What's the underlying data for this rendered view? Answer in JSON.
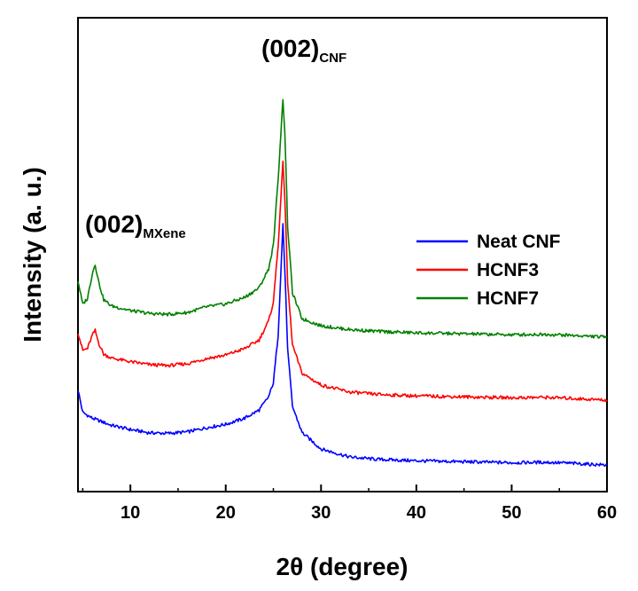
{
  "chart_data": {
    "type": "line",
    "title": "",
    "xlabel": "2θ (degree)",
    "ylabel": "Intensity (a. u.)",
    "xlim": [
      4.5,
      60
    ],
    "ylim": [
      0,
      1
    ],
    "y_ticks_shown": false,
    "x_ticks": [
      10,
      20,
      30,
      40,
      50,
      60
    ],
    "grid": false,
    "legend_position": "right",
    "annotations": [
      {
        "main": "(002)",
        "sub": "CNF",
        "x": 26
      },
      {
        "main": "(002)",
        "sub": "MXene",
        "x": 6.3
      }
    ],
    "series": [
      {
        "name": "Neat CNF",
        "color": "#0000ff",
        "points": [
          [
            4.5,
            0.215
          ],
          [
            5.0,
            0.167
          ],
          [
            6.0,
            0.155
          ],
          [
            8.0,
            0.14
          ],
          [
            10.0,
            0.131
          ],
          [
            12.0,
            0.124
          ],
          [
            14.0,
            0.123
          ],
          [
            16.0,
            0.126
          ],
          [
            18.0,
            0.135
          ],
          [
            20.0,
            0.142
          ],
          [
            22.0,
            0.155
          ],
          [
            23.5,
            0.172
          ],
          [
            24.5,
            0.2
          ],
          [
            25.0,
            0.23
          ],
          [
            25.5,
            0.33
          ],
          [
            25.8,
            0.47
          ],
          [
            26.0,
            0.565
          ],
          [
            26.2,
            0.47
          ],
          [
            26.5,
            0.3
          ],
          [
            27.0,
            0.18
          ],
          [
            28.0,
            0.125
          ],
          [
            30.0,
            0.09
          ],
          [
            33.0,
            0.073
          ],
          [
            36.0,
            0.068
          ],
          [
            40.0,
            0.065
          ],
          [
            45.0,
            0.063
          ],
          [
            50.0,
            0.061
          ],
          [
            53.5,
            0.062
          ],
          [
            56.0,
            0.06
          ],
          [
            60.0,
            0.056
          ]
        ]
      },
      {
        "name": "HCNF3",
        "color": "#ff0000",
        "points": [
          [
            4.5,
            0.336
          ],
          [
            5.0,
            0.298
          ],
          [
            5.5,
            0.302
          ],
          [
            6.0,
            0.33
          ],
          [
            6.3,
            0.34
          ],
          [
            6.7,
            0.312
          ],
          [
            7.2,
            0.29
          ],
          [
            8.0,
            0.282
          ],
          [
            10.0,
            0.274
          ],
          [
            12.0,
            0.268
          ],
          [
            14.0,
            0.266
          ],
          [
            16.0,
            0.27
          ],
          [
            18.0,
            0.281
          ],
          [
            20.0,
            0.288
          ],
          [
            22.0,
            0.302
          ],
          [
            23.5,
            0.32
          ],
          [
            24.5,
            0.36
          ],
          [
            25.0,
            0.4
          ],
          [
            25.5,
            0.52
          ],
          [
            25.8,
            0.62
          ],
          [
            26.0,
            0.7
          ],
          [
            26.2,
            0.62
          ],
          [
            26.5,
            0.44
          ],
          [
            27.0,
            0.31
          ],
          [
            28.0,
            0.25
          ],
          [
            30.0,
            0.225
          ],
          [
            33.0,
            0.21
          ],
          [
            36.0,
            0.205
          ],
          [
            40.0,
            0.202
          ],
          [
            45.0,
            0.2
          ],
          [
            50.0,
            0.198
          ],
          [
            53.5,
            0.199
          ],
          [
            56.0,
            0.197
          ],
          [
            60.0,
            0.193
          ]
        ]
      },
      {
        "name": "HCNF7",
        "color": "#008000",
        "points": [
          [
            4.5,
            0.445
          ],
          [
            5.0,
            0.395
          ],
          [
            5.5,
            0.408
          ],
          [
            6.0,
            0.46
          ],
          [
            6.3,
            0.48
          ],
          [
            6.7,
            0.44
          ],
          [
            7.2,
            0.405
          ],
          [
            8.0,
            0.392
          ],
          [
            10.0,
            0.382
          ],
          [
            12.0,
            0.376
          ],
          [
            14.0,
            0.374
          ],
          [
            16.0,
            0.378
          ],
          [
            18.0,
            0.39
          ],
          [
            20.0,
            0.396
          ],
          [
            22.0,
            0.41
          ],
          [
            23.5,
            0.43
          ],
          [
            24.5,
            0.47
          ],
          [
            25.0,
            0.52
          ],
          [
            25.5,
            0.66
          ],
          [
            25.8,
            0.76
          ],
          [
            26.0,
            0.83
          ],
          [
            26.2,
            0.76
          ],
          [
            26.5,
            0.56
          ],
          [
            27.0,
            0.42
          ],
          [
            28.0,
            0.365
          ],
          [
            30.0,
            0.35
          ],
          [
            33.0,
            0.342
          ],
          [
            36.0,
            0.338
          ],
          [
            40.0,
            0.335
          ],
          [
            45.0,
            0.333
          ],
          [
            50.0,
            0.331
          ],
          [
            53.5,
            0.332
          ],
          [
            56.0,
            0.33
          ],
          [
            60.0,
            0.326
          ]
        ]
      }
    ]
  }
}
